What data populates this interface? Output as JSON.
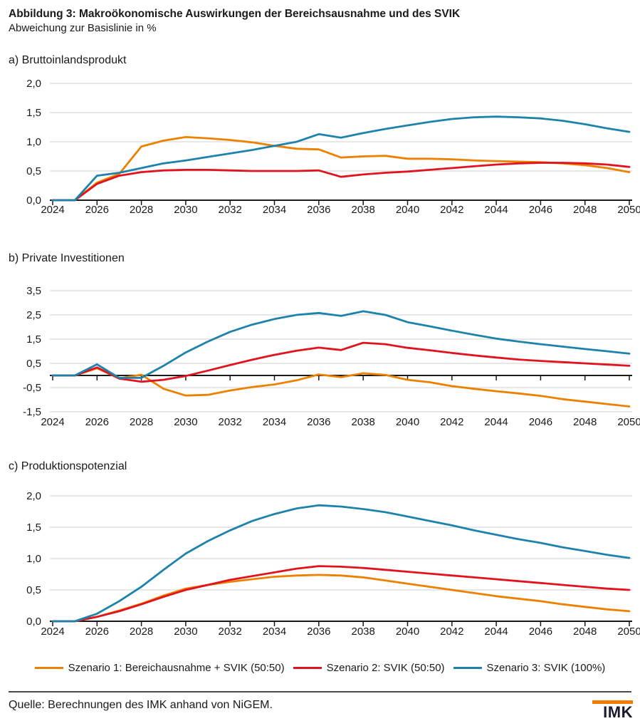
{
  "title": "Abbildung 3: Makroökonomische Auswirkungen der Bereichsausnahme und des SVIK",
  "subtitle": "Abweichung zur Basislinie in %",
  "colors": {
    "szenario1": "#EC8100",
    "szenario2": "#E0131F",
    "szenario3": "#1D83AA",
    "grid": "#D9D9D9",
    "axis": "#1A1A1A",
    "tick_text": "#1A1A1A",
    "logo_bar": "#F07D00",
    "logo_text": "#1B1B2F"
  },
  "legend": [
    {
      "label": "Szenario 1: Bereichausnahme + SVIK (50:50)",
      "color": "szenario1"
    },
    {
      "label": "Szenario 2: SVIK (50:50)",
      "color": "szenario2"
    },
    {
      "label": "Szenario 3: SVIK (100%)",
      "color": "szenario3"
    }
  ],
  "footer": {
    "source": "Quelle: Berechnungen des IMK anhand von NiGEM.",
    "logo_text": "IMK"
  },
  "chart_data": [
    {
      "id": "bruttoinlandsprodukt",
      "type": "line",
      "title": "a) Bruttoinlandsprodukt",
      "x": [
        2024,
        2025,
        2026,
        2027,
        2028,
        2029,
        2030,
        2031,
        2032,
        2033,
        2034,
        2035,
        2036,
        2037,
        2038,
        2039,
        2040,
        2041,
        2042,
        2043,
        2044,
        2045,
        2046,
        2047,
        2048,
        2049,
        2050
      ],
      "xticks": [
        2024,
        2026,
        2028,
        2030,
        2032,
        2034,
        2036,
        2038,
        2040,
        2042,
        2044,
        2046,
        2048,
        2050
      ],
      "ylim": [
        0,
        2.0
      ],
      "yticks": [
        {
          "v": 0.0,
          "label": "0,0"
        },
        {
          "v": 0.5,
          "label": "0,5"
        },
        {
          "v": 1.0,
          "label": "1,0"
        },
        {
          "v": 1.5,
          "label": "1,5"
        },
        {
          "v": 2.0,
          "label": "2,0"
        }
      ],
      "grid": true,
      "series": [
        {
          "name": "Szenario 1: Bereichausnahme + SVIK (50:50)",
          "color": "szenario1",
          "values": [
            0,
            0,
            0.3,
            0.45,
            0.92,
            1.02,
            1.08,
            1.06,
            1.03,
            0.99,
            0.93,
            0.88,
            0.87,
            0.73,
            0.75,
            0.76,
            0.71,
            0.71,
            0.7,
            0.68,
            0.67,
            0.66,
            0.65,
            0.63,
            0.6,
            0.55,
            0.48
          ]
        },
        {
          "name": "Szenario 2: SVIK (50:50)",
          "color": "szenario2",
          "values": [
            0,
            0,
            0.28,
            0.42,
            0.48,
            0.51,
            0.52,
            0.52,
            0.51,
            0.5,
            0.5,
            0.5,
            0.51,
            0.4,
            0.44,
            0.47,
            0.49,
            0.52,
            0.55,
            0.58,
            0.61,
            0.63,
            0.64,
            0.64,
            0.63,
            0.61,
            0.57
          ]
        },
        {
          "name": "Szenario 3: SVIK (100%)",
          "color": "szenario3",
          "values": [
            0,
            0,
            0.42,
            0.47,
            0.55,
            0.63,
            0.68,
            0.74,
            0.8,
            0.86,
            0.93,
            1.0,
            1.13,
            1.07,
            1.15,
            1.22,
            1.28,
            1.34,
            1.39,
            1.42,
            1.43,
            1.42,
            1.4,
            1.36,
            1.3,
            1.23,
            1.17
          ]
        }
      ]
    },
    {
      "id": "private-investitionen",
      "type": "line",
      "title": "b) Private Investitionen",
      "x": [
        2024,
        2025,
        2026,
        2027,
        2028,
        2029,
        2030,
        2031,
        2032,
        2033,
        2034,
        2035,
        2036,
        2037,
        2038,
        2039,
        2040,
        2041,
        2042,
        2043,
        2044,
        2045,
        2046,
        2047,
        2048,
        2049,
        2050
      ],
      "xticks": [
        2024,
        2026,
        2028,
        2030,
        2032,
        2034,
        2036,
        2038,
        2040,
        2042,
        2044,
        2046,
        2048,
        2050
      ],
      "ylim": [
        -1.5,
        3.5
      ],
      "yticks": [
        {
          "v": -1.5,
          "label": "-1,5"
        },
        {
          "v": -0.5,
          "label": "-0,5"
        },
        {
          "v": 0.5,
          "label": "0,5"
        },
        {
          "v": 1.5,
          "label": "1,5"
        },
        {
          "v": 2.5,
          "label": "2,5"
        },
        {
          "v": 3.5,
          "label": "3,5"
        }
      ],
      "grid": true,
      "series": [
        {
          "name": "Szenario 1: Bereichausnahme + SVIK (50:50)",
          "color": "szenario1",
          "values": [
            0,
            0,
            0.3,
            -0.12,
            0.03,
            -0.55,
            -0.83,
            -0.8,
            -0.62,
            -0.48,
            -0.37,
            -0.2,
            0.04,
            -0.07,
            0.09,
            0.02,
            -0.18,
            -0.28,
            -0.44,
            -0.55,
            -0.65,
            -0.74,
            -0.84,
            -0.98,
            -1.08,
            -1.18,
            -1.28
          ]
        },
        {
          "name": "Szenario 2: SVIK (50:50)",
          "color": "szenario2",
          "values": [
            0,
            0,
            0.33,
            -0.13,
            -0.26,
            -0.18,
            -0.02,
            0.2,
            0.43,
            0.65,
            0.85,
            1.02,
            1.15,
            1.05,
            1.35,
            1.29,
            1.14,
            1.04,
            0.93,
            0.83,
            0.74,
            0.66,
            0.6,
            0.55,
            0.5,
            0.45,
            0.4
          ]
        },
        {
          "name": "Szenario 3: SVIK (100%)",
          "color": "szenario3",
          "values": [
            0,
            0,
            0.46,
            -0.1,
            -0.1,
            0.4,
            0.95,
            1.4,
            1.8,
            2.1,
            2.33,
            2.5,
            2.58,
            2.46,
            2.65,
            2.5,
            2.2,
            2.03,
            1.85,
            1.68,
            1.52,
            1.4,
            1.29,
            1.19,
            1.09,
            1.0,
            0.9
          ]
        }
      ]
    },
    {
      "id": "produktionspotenzial",
      "type": "line",
      "title": "c) Produktionspotenzial",
      "x": [
        2024,
        2025,
        2026,
        2027,
        2028,
        2029,
        2030,
        2031,
        2032,
        2033,
        2034,
        2035,
        2036,
        2037,
        2038,
        2039,
        2040,
        2041,
        2042,
        2043,
        2044,
        2045,
        2046,
        2047,
        2048,
        2049,
        2050
      ],
      "xticks": [
        2024,
        2026,
        2028,
        2030,
        2032,
        2034,
        2036,
        2038,
        2040,
        2042,
        2044,
        2046,
        2048,
        2050
      ],
      "ylim": [
        0,
        2.0
      ],
      "yticks": [
        {
          "v": 0.0,
          "label": "0,0"
        },
        {
          "v": 0.5,
          "label": "0,5"
        },
        {
          "v": 1.0,
          "label": "1,0"
        },
        {
          "v": 1.5,
          "label": "1,5"
        },
        {
          "v": 2.0,
          "label": "2,0"
        }
      ],
      "grid": true,
      "series": [
        {
          "name": "Szenario 1: Bereichausnahme + SVIK (50:50)",
          "color": "szenario1",
          "values": [
            0,
            0,
            0.07,
            0.17,
            0.28,
            0.41,
            0.52,
            0.58,
            0.63,
            0.67,
            0.71,
            0.73,
            0.74,
            0.73,
            0.7,
            0.65,
            0.6,
            0.55,
            0.5,
            0.45,
            0.4,
            0.36,
            0.32,
            0.27,
            0.23,
            0.19,
            0.16
          ]
        },
        {
          "name": "Szenario 2: SVIK (50:50)",
          "color": "szenario2",
          "values": [
            0,
            0,
            0.07,
            0.16,
            0.27,
            0.39,
            0.5,
            0.58,
            0.66,
            0.72,
            0.78,
            0.84,
            0.88,
            0.87,
            0.85,
            0.82,
            0.79,
            0.76,
            0.73,
            0.7,
            0.67,
            0.64,
            0.61,
            0.58,
            0.55,
            0.52,
            0.5
          ]
        },
        {
          "name": "Szenario 3: SVIK (100%)",
          "color": "szenario3",
          "values": [
            0,
            0,
            0.12,
            0.32,
            0.55,
            0.82,
            1.08,
            1.28,
            1.45,
            1.6,
            1.71,
            1.8,
            1.85,
            1.83,
            1.79,
            1.74,
            1.67,
            1.6,
            1.53,
            1.45,
            1.38,
            1.31,
            1.25,
            1.18,
            1.12,
            1.06,
            1.01
          ]
        }
      ]
    }
  ]
}
